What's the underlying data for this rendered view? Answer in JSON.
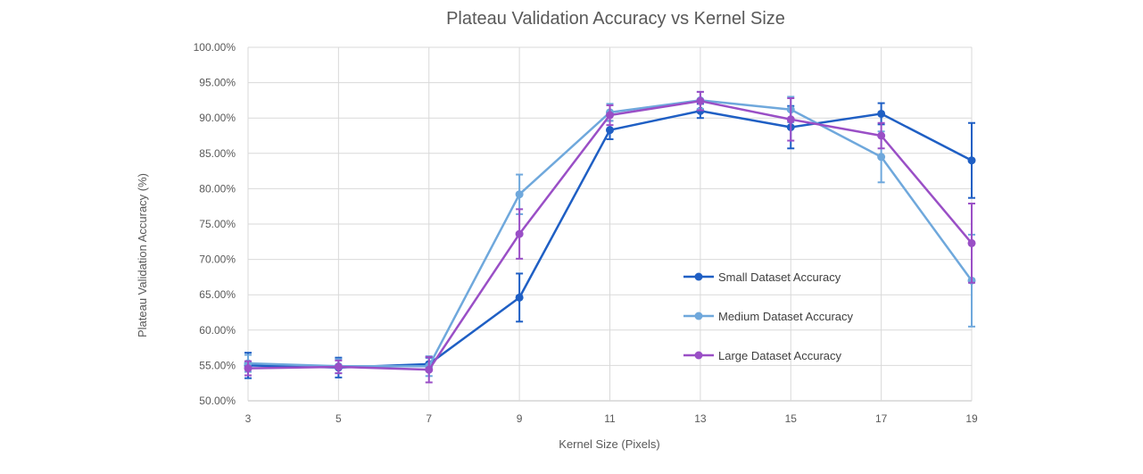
{
  "chart_data": {
    "type": "line",
    "title": "Plateau Validation Accuracy vs Kernel Size",
    "xlabel": "Kernel Size (Pixels)",
    "ylabel": "Plateau Validation Accuracy (%)",
    "x": [
      3,
      5,
      7,
      9,
      11,
      13,
      15,
      17,
      19
    ],
    "x_tick_labels": [
      "3",
      "5",
      "7",
      "9",
      "11",
      "13",
      "15",
      "17",
      "19"
    ],
    "ylim": [
      50,
      100
    ],
    "y_ticks": [
      50,
      55,
      60,
      65,
      70,
      75,
      80,
      85,
      90,
      95,
      100
    ],
    "y_tick_labels": [
      "50.00%",
      "55.00%",
      "60.00%",
      "65.00%",
      "70.00%",
      "75.00%",
      "80.00%",
      "85.00%",
      "90.00%",
      "95.00%",
      "100.00%"
    ],
    "grid": true,
    "legend_position": "right-inside",
    "series": [
      {
        "name": "Small Dataset Accuracy",
        "color": "#1f5fc4",
        "values": [
          55.0,
          54.7,
          55.2,
          64.6,
          88.3,
          91.0,
          88.7,
          90.6,
          84.0
        ],
        "errors": [
          1.8,
          1.4,
          0.9,
          3.4,
          1.3,
          1.0,
          3.0,
          1.5,
          5.3
        ]
      },
      {
        "name": "Medium Dataset Accuracy",
        "color": "#6fa8dc",
        "values": [
          55.3,
          54.9,
          54.9,
          79.2,
          90.8,
          92.5,
          91.2,
          84.5,
          67.0
        ],
        "errors": [
          1.2,
          1.0,
          1.4,
          2.8,
          1.2,
          1.2,
          1.8,
          3.6,
          6.5
        ]
      },
      {
        "name": "Large Dataset Accuracy",
        "color": "#9a4fc6",
        "values": [
          54.6,
          54.8,
          54.4,
          73.6,
          90.4,
          92.4,
          89.8,
          87.5,
          72.3
        ],
        "errors": [
          1.0,
          0.9,
          1.8,
          3.5,
          1.4,
          1.3,
          3.0,
          1.8,
          5.6
        ]
      }
    ]
  }
}
